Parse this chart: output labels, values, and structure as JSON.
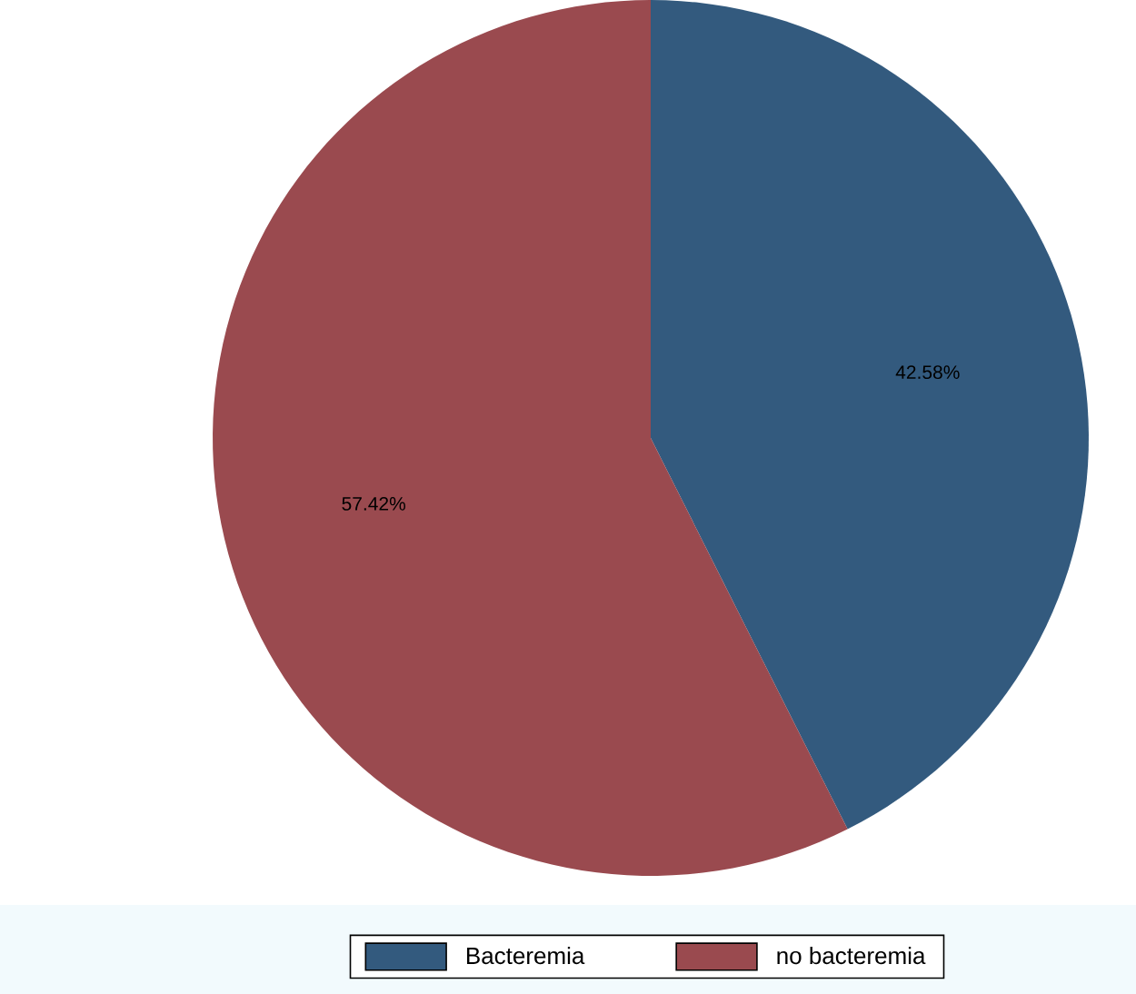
{
  "chart_data": {
    "type": "pie",
    "categories": [
      "Bacteremia",
      "no bacteremia"
    ],
    "values": [
      42.58,
      57.42
    ],
    "colors": [
      "#335a7e",
      "#9a4a4f"
    ],
    "value_labels": [
      "42.58%",
      "57.42%"
    ],
    "legend": "bottom"
  }
}
